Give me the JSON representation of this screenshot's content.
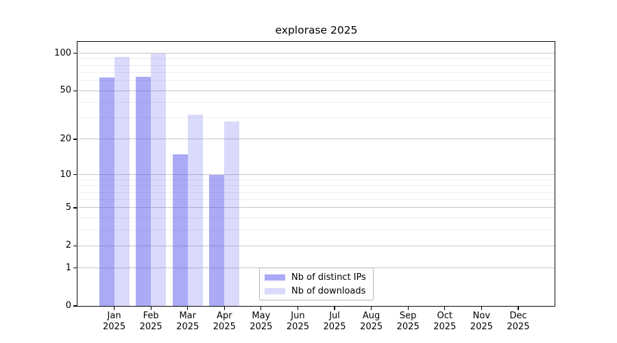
{
  "chart": {
    "title": "explorase 2025"
  },
  "chart_data": {
    "type": "bar",
    "title": "explorase 2025",
    "categories": [
      "Jan",
      "Feb",
      "Mar",
      "Apr",
      "May",
      "Jun",
      "Jul",
      "Aug",
      "Sep",
      "Oct",
      "Nov",
      "Dec"
    ],
    "category_year": "2025",
    "series": [
      {
        "name": "Nb of distinct IPs",
        "color": "rgba(85,85,240,0.50)",
        "values": [
          64,
          65,
          15,
          10,
          null,
          null,
          null,
          null,
          null,
          null,
          null,
          null
        ]
      },
      {
        "name": "Nb of downloads",
        "color": "rgba(85,85,240,0.22)",
        "values": [
          93,
          100,
          32,
          28,
          null,
          null,
          null,
          null,
          null,
          null,
          null,
          null
        ]
      }
    ],
    "yscale": "log1p",
    "yticks_major": [
      0,
      1,
      2,
      5,
      10,
      20,
      50,
      100
    ],
    "yticks_minor": [
      3,
      4,
      6,
      7,
      8,
      9,
      30,
      40,
      60,
      70,
      80,
      90
    ],
    "ylim": [
      0,
      123
    ],
    "xlabel": "",
    "ylabel": "",
    "grid": true,
    "legend_position": "lower-center"
  },
  "colors": {
    "bar_ips": "rgba(85,85,240,0.50)",
    "bar_downloads": "rgba(85,85,240,0.22)",
    "grid_major": "#c6c6c6",
    "grid_minor": "#ededed",
    "axis": "#0a0a0a"
  }
}
